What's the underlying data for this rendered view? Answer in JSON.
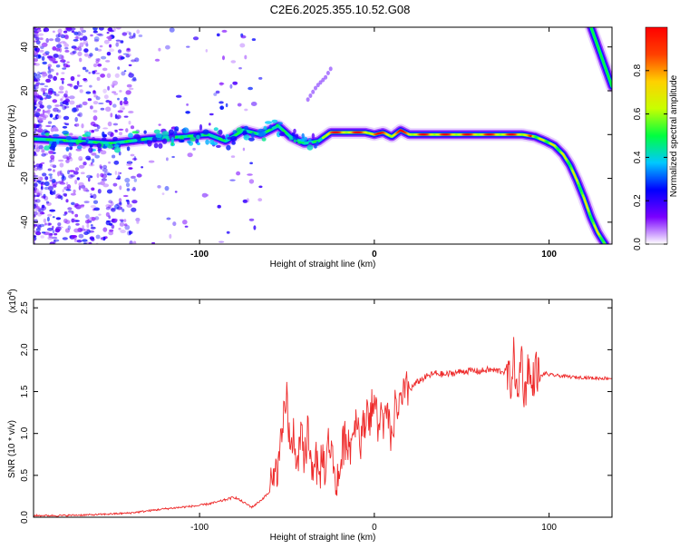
{
  "figure": {
    "title": "C2E6.2025.355.10.52.G08"
  },
  "chart_data": [
    {
      "type": "heatmap",
      "title": "C2E6.2025.355.10.52.G08",
      "xlabel": "Height of straight line (km)",
      "ylabel": "Frequency (Hz)",
      "xlim": [
        -195,
        136
      ],
      "ylim": [
        -50,
        49
      ],
      "xticks": [
        -100,
        0,
        100
      ],
      "xtick_labels": [
        "-100",
        "0",
        "100"
      ],
      "yticks": [
        -40,
        -20,
        0,
        20,
        40
      ],
      "ytick_labels": [
        "-40",
        "-20",
        "0",
        "20",
        "40"
      ],
      "ridge": {
        "description": "dominant spectral ridge frequency vs height",
        "x": [
          -195,
          -170,
          -150,
          -130,
          -110,
          -95,
          -85,
          -75,
          -65,
          -55,
          -48,
          -40,
          -32,
          -25,
          -15,
          -5,
          0,
          5,
          10,
          15,
          20,
          30,
          45,
          60,
          75,
          85,
          92,
          98,
          103,
          108,
          112,
          116,
          120,
          124,
          128,
          132
        ],
        "y": [
          -2,
          -3,
          -4,
          -2,
          -1,
          0,
          -3,
          2,
          0,
          4,
          -1,
          -4,
          -3,
          1,
          1,
          1,
          0,
          1,
          -1,
          2,
          0,
          0,
          0,
          0,
          0,
          0,
          -1,
          -3,
          -5,
          -9,
          -14,
          -21,
          -29,
          -38,
          -45,
          -50
        ]
      },
      "secondary_ridge": {
        "description": "steep feature at upper right",
        "x": [
          124,
          128,
          132,
          136
        ],
        "y": [
          49,
          40,
          31,
          22
        ]
      },
      "faint_streak": {
        "x": [
          -38,
          -33,
          -28,
          -25
        ],
        "y": [
          16,
          22,
          26,
          30
        ]
      },
      "colorbar": {
        "label": "Normalized spectral amplitude",
        "range": [
          0.0,
          1.0
        ],
        "ticks": [
          0.0,
          0.2,
          0.4,
          0.6,
          0.8
        ],
        "tick_labels": [
          "0.0",
          "0.2",
          "0.4",
          "0.6",
          "0.8"
        ],
        "colormap": [
          "#ffffff",
          "#7a00ff",
          "#0000ff",
          "#00c8ff",
          "#00ff40",
          "#c8ff00",
          "#ffd000",
          "#ff4000",
          "#ff0000"
        ]
      }
    },
    {
      "type": "line",
      "xlabel": "Height of straight line (km)",
      "ylabel": "SNR (10 * v/v)",
      "scale_label": "(x10",
      "scale_exponent": "4",
      "scale_close": ")",
      "xlim": [
        -195,
        136
      ],
      "ylim": [
        0.0,
        2.6
      ],
      "xticks": [
        -100,
        0,
        100
      ],
      "xtick_labels": [
        "-100",
        "0",
        "100"
      ],
      "yticks": [
        0.0,
        0.5,
        1.0,
        1.5,
        2.0,
        2.5
      ],
      "ytick_labels": [
        "0.0",
        "0.5",
        "1.0",
        "1.5",
        "2.0",
        "2.5"
      ],
      "color": "#ee2a2a",
      "series": [
        {
          "name": "SNR",
          "x": [
            -195,
            -180,
            -160,
            -140,
            -120,
            -100,
            -90,
            -80,
            -75,
            -70,
            -65,
            -60,
            -57,
            -54,
            -52,
            -50,
            -48,
            -46,
            -44,
            -42,
            -40,
            -38,
            -36,
            -34,
            -32,
            -30,
            -28,
            -26,
            -24,
            -22,
            -20,
            -18,
            -16,
            -14,
            -12,
            -10,
            -8,
            -6,
            -4,
            -2,
            0,
            2,
            4,
            6,
            8,
            10,
            12,
            14,
            16,
            18,
            20,
            25,
            30,
            35,
            40,
            45,
            50,
            55,
            60,
            65,
            70,
            75,
            78,
            80,
            82,
            84,
            86,
            88,
            90,
            92,
            95,
            98,
            100,
            105,
            110,
            115,
            120,
            125,
            130,
            136
          ],
          "y": [
            0.02,
            0.02,
            0.03,
            0.05,
            0.1,
            0.14,
            0.18,
            0.24,
            0.18,
            0.12,
            0.2,
            0.3,
            0.5,
            0.7,
            1.1,
            1.48,
            0.7,
            1.05,
            0.5,
            0.95,
            0.62,
            1.1,
            0.55,
            0.78,
            0.4,
            0.75,
            0.55,
            0.95,
            0.72,
            0.4,
            0.5,
            0.85,
            0.98,
            0.82,
            1.05,
            1.2,
            0.95,
            1.05,
            1.35,
            1.2,
            1.4,
            1.05,
            1.25,
            1.1,
            1.2,
            0.85,
            1.35,
            1.3,
            1.4,
            1.48,
            1.52,
            1.62,
            1.68,
            1.72,
            1.7,
            1.72,
            1.74,
            1.75,
            1.74,
            1.76,
            1.75,
            1.74,
            1.6,
            1.95,
            1.3,
            2.05,
            1.4,
            1.85,
            1.5,
            1.78,
            1.68,
            1.72,
            1.7,
            1.69,
            1.68,
            1.67,
            1.67,
            1.66,
            1.66,
            1.66
          ]
        }
      ]
    }
  ]
}
